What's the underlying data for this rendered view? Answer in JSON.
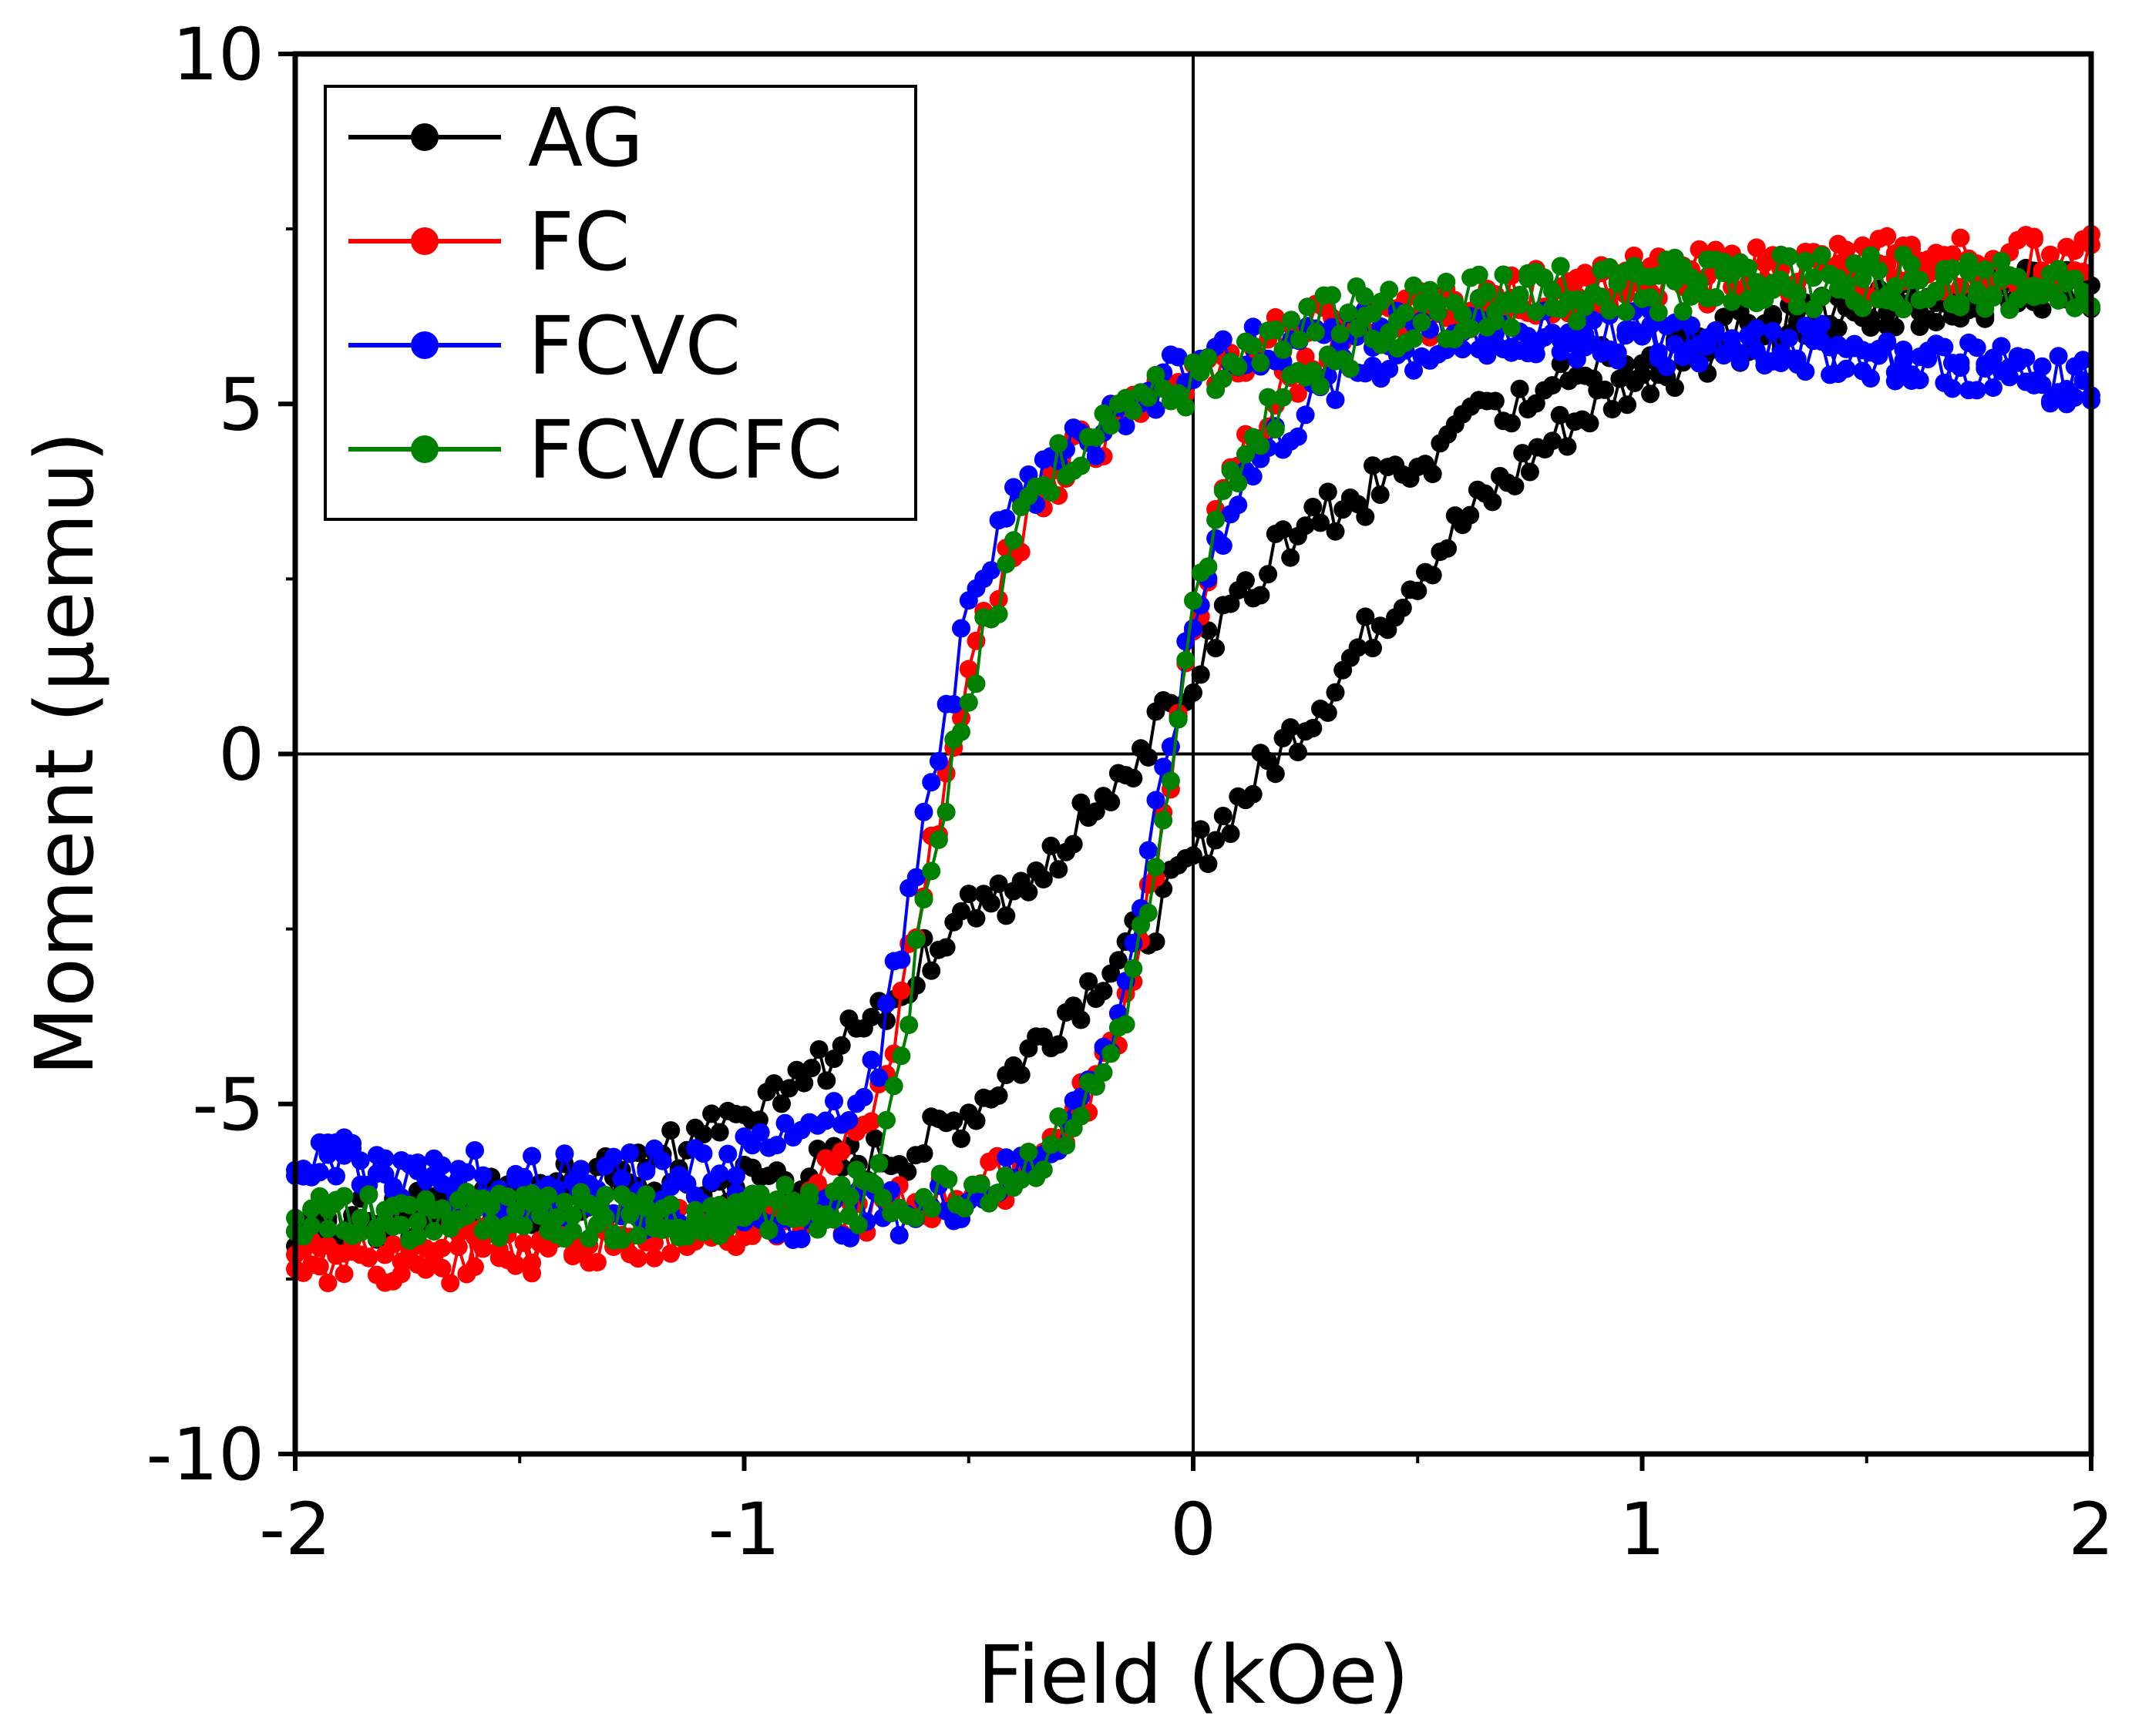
{
  "chart_data": {
    "type": "line",
    "title": "",
    "xlabel": "Field (kOe)",
    "ylabel": "Moment (μemu)",
    "xlim": [
      -2,
      2
    ],
    "ylim": [
      -10,
      10
    ],
    "x_ticks": [
      -2,
      -1,
      0,
      1,
      2
    ],
    "x_tick_labels": [
      "-2",
      "-1",
      "0",
      "1",
      "2"
    ],
    "y_ticks": [
      -10,
      -5,
      0,
      5,
      10
    ],
    "y_tick_labels": [
      "-10",
      "-5",
      "0",
      "5",
      "10"
    ],
    "grid": false,
    "zero_lines": true,
    "legend_position": "top-left",
    "series": [
      {
        "name": "AG",
        "color": "#000000",
        "descending": {
          "x": [
            2.0,
            1.8,
            1.6,
            1.4,
            1.2,
            1.0,
            0.8,
            0.6,
            0.5,
            0.4,
            0.3,
            0.2,
            0.1,
            0.0,
            -0.1,
            -0.2,
            -0.3,
            -0.4,
            -0.5,
            -0.6,
            -0.7,
            -0.8,
            -0.9,
            -1.0,
            -1.2,
            -1.4,
            -1.6,
            -1.8,
            -2.0
          ],
          "y": [
            6.7,
            6.6,
            6.4,
            6.2,
            6.0,
            5.7,
            5.3,
            4.6,
            4.2,
            3.8,
            3.4,
            3.0,
            2.2,
            1.2,
            0.2,
            -0.5,
            -1.3,
            -1.9,
            -2.3,
            -2.9,
            -3.6,
            -4.3,
            -4.9,
            -5.3,
            -5.8,
            -6.2,
            -6.4,
            -6.6,
            -6.7
          ]
        },
        "ascending": {
          "x": [
            -2.0,
            -1.8,
            -1.6,
            -1.4,
            -1.2,
            -1.0,
            -0.8,
            -0.6,
            -0.5,
            -0.4,
            -0.3,
            -0.2,
            -0.1,
            0.0,
            0.1,
            0.2,
            0.3,
            0.4,
            0.5,
            0.6,
            0.7,
            0.8,
            0.9,
            1.0,
            1.2,
            1.4,
            1.6,
            1.8,
            2.0
          ],
          "y": [
            -6.7,
            -6.6,
            -6.5,
            -6.4,
            -6.3,
            -6.1,
            -5.9,
            -5.6,
            -5.1,
            -4.5,
            -3.8,
            -3.1,
            -2.5,
            -1.5,
            -0.7,
            0.1,
            0.9,
            1.8,
            2.6,
            3.3,
            3.9,
            4.5,
            5.0,
            5.4,
            5.9,
            6.2,
            6.4,
            6.6,
            6.7
          ]
        }
      },
      {
        "name": "FC",
        "color": "#ff0000",
        "descending": {
          "x": [
            2.0,
            1.8,
            1.6,
            1.4,
            1.2,
            1.0,
            0.8,
            0.6,
            0.4,
            0.2,
            0.1,
            0.0,
            -0.1,
            -0.2,
            -0.3,
            -0.4,
            -0.45,
            -0.5,
            -0.55,
            -0.6,
            -0.65,
            -0.7,
            -0.8,
            -1.0,
            -1.2,
            -1.4,
            -1.6,
            -1.8,
            -2.0
          ],
          "y": [
            7.1,
            7.0,
            6.9,
            6.8,
            6.8,
            6.7,
            6.6,
            6.5,
            6.3,
            6.0,
            5.7,
            5.3,
            5.0,
            4.6,
            4.0,
            3.0,
            2.2,
            1.0,
            -0.4,
            -1.8,
            -3.5,
            -4.8,
            -5.9,
            -6.6,
            -6.9,
            -7.1,
            -7.2,
            -7.3,
            -7.3
          ]
        },
        "ascending": {
          "x": [
            -2.0,
            -1.8,
            -1.6,
            -1.4,
            -1.2,
            -1.0,
            -0.8,
            -0.6,
            -0.4,
            -0.3,
            -0.2,
            -0.15,
            -0.1,
            -0.05,
            0.0,
            0.05,
            0.1,
            0.2,
            0.3,
            0.4,
            0.6,
            0.8,
            1.0,
            1.2,
            1.4,
            1.6,
            1.8,
            2.0
          ],
          "y": [
            -7.2,
            -7.1,
            -7.0,
            -6.9,
            -6.8,
            -6.7,
            -6.6,
            -6.4,
            -6.0,
            -5.5,
            -4.5,
            -3.5,
            -2.0,
            -0.5,
            1.8,
            3.2,
            4.2,
            5.2,
            5.8,
            6.1,
            6.4,
            6.6,
            6.8,
            6.9,
            7.0,
            7.1,
            7.1,
            7.2
          ]
        }
      },
      {
        "name": "FCVC",
        "color": "#0000ff",
        "descending": {
          "x": [
            2.0,
            1.8,
            1.6,
            1.4,
            1.2,
            1.0,
            0.8,
            0.6,
            0.4,
            0.2,
            0.1,
            0.0,
            -0.1,
            -0.2,
            -0.3,
            -0.4,
            -0.45,
            -0.5,
            -0.55,
            -0.6,
            -0.65,
            -0.7,
            -0.8,
            -1.0,
            -1.2,
            -1.4,
            -1.6,
            -1.8,
            -2.0
          ],
          "y": [
            5.3,
            5.5,
            5.6,
            5.7,
            5.8,
            5.9,
            6.0,
            6.0,
            6.0,
            5.9,
            5.8,
            5.6,
            5.2,
            4.6,
            4.2,
            3.6,
            2.8,
            2.0,
            0.5,
            -1.0,
            -2.6,
            -4.3,
            -5.3,
            -5.8,
            -5.9,
            -6.0,
            -6.0,
            -5.9,
            -5.7
          ]
        },
        "ascending": {
          "x": [
            -2.0,
            -1.8,
            -1.6,
            -1.4,
            -1.2,
            -1.0,
            -0.8,
            -0.6,
            -0.5,
            -0.4,
            -0.3,
            -0.2,
            -0.15,
            -0.1,
            -0.05,
            0.0,
            0.05,
            0.1,
            0.2,
            0.3,
            0.4,
            0.6,
            0.8,
            1.0,
            1.2,
            1.4,
            1.6,
            1.8,
            2.0
          ],
          "y": [
            -5.8,
            -6.0,
            -6.2,
            -6.4,
            -6.5,
            -6.6,
            -6.6,
            -6.5,
            -6.3,
            -6.0,
            -5.4,
            -4.4,
            -3.2,
            -1.6,
            0.2,
            1.8,
            3.0,
            3.8,
            4.6,
            5.2,
            5.6,
            5.9,
            6.0,
            6.0,
            5.9,
            5.8,
            5.6,
            5.4,
            5.3
          ]
        }
      },
      {
        "name": "FCVCFC",
        "color": "#008000",
        "descending": {
          "x": [
            2.0,
            1.8,
            1.6,
            1.4,
            1.2,
            1.0,
            0.8,
            0.6,
            0.4,
            0.2,
            0.1,
            0.0,
            -0.1,
            -0.2,
            -0.3,
            -0.35,
            -0.4,
            -0.45,
            -0.5,
            -0.55,
            -0.6,
            -0.65,
            -0.7,
            -0.8,
            -1.0,
            -1.2,
            -1.4,
            -1.6,
            -1.8,
            -2.0
          ],
          "y": [
            6.6,
            6.7,
            6.8,
            6.8,
            6.8,
            6.8,
            6.7,
            6.6,
            6.4,
            6.1,
            5.7,
            5.3,
            5.2,
            4.6,
            4.2,
            3.8,
            3.0,
            2.0,
            0.8,
            -0.5,
            -2.2,
            -4.5,
            -6.0,
            -6.5,
            -6.6,
            -6.6,
            -6.6,
            -6.6,
            -6.6,
            -6.6
          ]
        },
        "ascending": {
          "x": [
            -2.0,
            -1.8,
            -1.6,
            -1.4,
            -1.2,
            -1.0,
            -0.8,
            -0.6,
            -0.4,
            -0.3,
            -0.2,
            -0.15,
            -0.1,
            -0.05,
            0.0,
            0.05,
            0.1,
            0.2,
            0.3,
            0.4,
            0.6,
            0.8,
            1.0,
            1.2,
            1.4,
            1.6,
            1.8,
            2.0
          ],
          "y": [
            -6.6,
            -6.6,
            -6.6,
            -6.6,
            -6.6,
            -6.5,
            -6.5,
            -6.3,
            -6.0,
            -5.5,
            -4.6,
            -3.6,
            -2.2,
            -0.6,
            2.0,
            3.2,
            4.2,
            5.1,
            5.7,
            6.0,
            6.3,
            6.5,
            6.6,
            6.7,
            6.7,
            6.7,
            6.7,
            6.6
          ]
        }
      }
    ]
  }
}
